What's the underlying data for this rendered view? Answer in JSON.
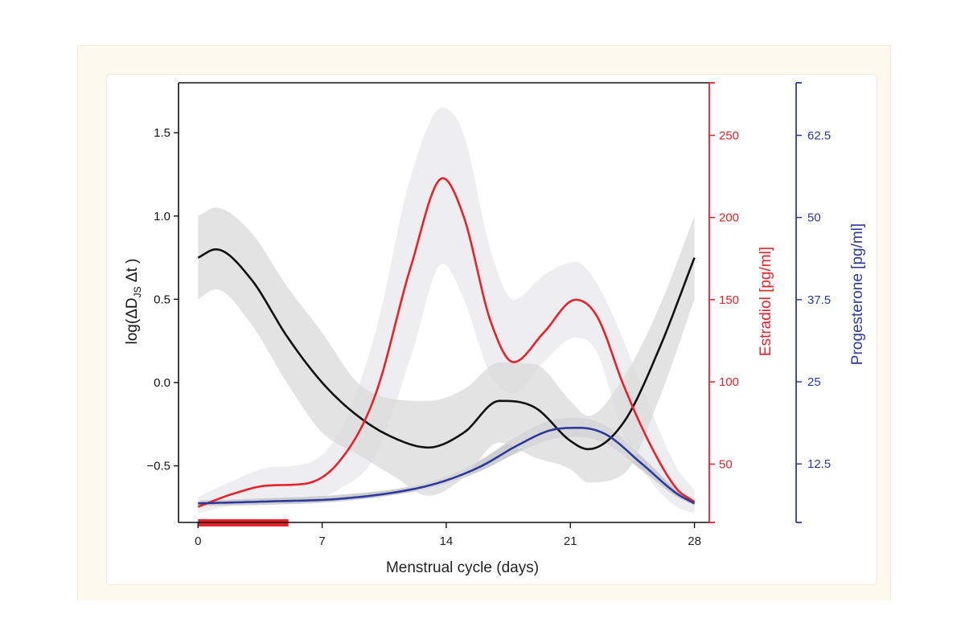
{
  "chart_data": {
    "type": "line",
    "xlabel": "Menstrual cycle (days)",
    "x_ticks": [
      0,
      7,
      14,
      21,
      28
    ],
    "xlim": [
      -1.1,
      28.2
    ],
    "menses_bar": {
      "from": 0,
      "to": 5.1
    },
    "axes": {
      "left": {
        "label_parts": [
          "log(ΔD",
          "JS",
          " Δt )"
        ],
        "ylim": [
          -0.84,
          1.8
        ],
        "ticks": [
          1.5,
          1.0,
          0.5,
          0.0,
          -0.5
        ],
        "tick_labels": [
          "1.5",
          "1.0",
          "0.5",
          "0.0",
          "−0.5"
        ],
        "color": "#111111"
      },
      "estradiol": {
        "label": "Estradiol [pg/ml]",
        "ylim": [
          14.5,
          282
        ],
        "ticks": [
          250,
          200,
          150,
          100,
          50
        ],
        "tick_labels": [
          "250",
          "200",
          "150",
          "100",
          "50"
        ],
        "color": "#e8212a"
      },
      "progesterone": {
        "label": "Progesterone [pg/ml]",
        "ylim": [
          3.6,
          70.5
        ],
        "ticks": [
          62.5,
          50,
          37.5,
          25,
          12.5
        ],
        "tick_labels": [
          "62.5",
          "50",
          "37.5",
          "25",
          "12.5"
        ],
        "color": "#2b3a9c"
      }
    },
    "series": [
      {
        "axis": "left",
        "color": "#111111",
        "band_color": "#d9d9db",
        "x": [
          0,
          1,
          3,
          5,
          7,
          9,
          11,
          13,
          15,
          17,
          19,
          21,
          22,
          24,
          26,
          28
        ],
        "y": [
          0.75,
          0.8,
          0.62,
          0.28,
          0.0,
          -0.2,
          -0.33,
          -0.39,
          -0.3,
          -0.11,
          -0.15,
          -0.35,
          -0.4,
          -0.24,
          0.2,
          0.75
        ],
        "lower": [
          0.5,
          0.56,
          0.35,
          0.0,
          -0.3,
          -0.43,
          -0.56,
          -0.68,
          -0.57,
          -0.36,
          -0.45,
          -0.52,
          -0.6,
          -0.55,
          -0.1,
          0.5
        ],
        "upper": [
          1.0,
          1.05,
          0.9,
          0.58,
          0.3,
          0.0,
          -0.1,
          -0.11,
          -0.04,
          0.12,
          0.11,
          -0.11,
          -0.2,
          0.03,
          0.45,
          1.0
        ]
      },
      {
        "axis": "estradiol",
        "color": "#e8212a",
        "band_color": "#ececee",
        "x": [
          0,
          2,
          4,
          6,
          8,
          10,
          12,
          13.8,
          15,
          16.5,
          17.8,
          19.5,
          21.3,
          22.5,
          24,
          25.5,
          27,
          28
        ],
        "y": [
          24,
          32,
          37,
          38,
          52,
          92,
          170,
          224,
          200,
          137,
          112,
          130,
          150,
          140,
          98,
          62,
          35,
          27
        ],
        "lower": [
          20,
          25,
          28,
          28,
          35,
          55,
          115,
          172,
          150,
          104,
          93,
          112,
          127,
          118,
          68,
          40,
          24,
          20
        ],
        "upper": [
          30,
          40,
          48,
          50,
          70,
          130,
          225,
          267,
          250,
          180,
          150,
          165,
          173,
          160,
          125,
          84,
          48,
          34
        ]
      },
      {
        "axis": "progesterone",
        "color": "#2b3a9c",
        "band_color": "#c9c9cc",
        "x": [
          0,
          4,
          8,
          12,
          14,
          16,
          18,
          20,
          21.5,
          23,
          25,
          27,
          28
        ],
        "y": [
          6.5,
          6.8,
          7.2,
          8.6,
          10.0,
          12.2,
          15.3,
          17.7,
          18.0,
          17.0,
          12.6,
          8.0,
          6.5
        ],
        "lower": [
          6.1,
          6.3,
          6.8,
          8.2,
          9.5,
          11.5,
          14.2,
          16.3,
          16.6,
          15.6,
          11.6,
          7.5,
          6.2
        ],
        "upper": [
          6.9,
          7.3,
          7.8,
          9.1,
          10.6,
          13.2,
          16.7,
          19.2,
          19.5,
          18.3,
          13.7,
          8.6,
          6.8
        ]
      }
    ]
  }
}
